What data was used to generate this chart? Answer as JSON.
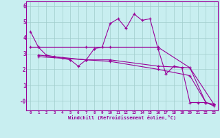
{
  "xlabel": "Windchill (Refroidissement éolien,°C)",
  "background_color": "#c8eef0",
  "grid_color": "#a0cccc",
  "line_color": "#990099",
  "ylim": [
    -0.6,
    6.3
  ],
  "xlim": [
    -0.5,
    23.5
  ],
  "yticks": [
    0,
    1,
    2,
    3,
    4,
    5,
    6
  ],
  "ytick_labels": [
    "-0",
    "1",
    "2",
    "3",
    "4",
    "5",
    "6"
  ],
  "xticks": [
    0,
    1,
    2,
    3,
    4,
    5,
    6,
    7,
    8,
    9,
    10,
    11,
    12,
    13,
    14,
    15,
    16,
    17,
    18,
    19,
    20,
    21,
    22,
    23
  ],
  "series": [
    {
      "x": [
        0,
        1,
        2,
        3,
        4,
        5,
        6,
        7,
        8,
        9,
        10,
        11,
        12,
        13,
        14,
        15,
        16,
        17,
        18,
        19,
        20,
        21,
        22,
        23
      ],
      "y": [
        4.4,
        3.4,
        2.9,
        2.8,
        2.7,
        2.6,
        2.2,
        2.6,
        3.3,
        3.4,
        4.9,
        5.2,
        4.6,
        5.5,
        5.1,
        5.2,
        3.3,
        1.7,
        2.2,
        2.1,
        -0.1,
        -0.1,
        -0.1,
        -0.3
      ]
    },
    {
      "x": [
        0,
        1,
        7,
        10,
        16,
        20,
        23
      ],
      "y": [
        3.4,
        3.4,
        3.4,
        3.4,
        3.4,
        2.1,
        -0.2
      ]
    },
    {
      "x": [
        1,
        7,
        10,
        16,
        20,
        22,
        23
      ],
      "y": [
        2.9,
        2.6,
        2.6,
        2.2,
        2.1,
        -0.1,
        -0.2
      ]
    },
    {
      "x": [
        1,
        7,
        10,
        16,
        20,
        22,
        23
      ],
      "y": [
        2.8,
        2.6,
        2.5,
        2.0,
        1.6,
        -0.1,
        -0.3
      ]
    }
  ]
}
